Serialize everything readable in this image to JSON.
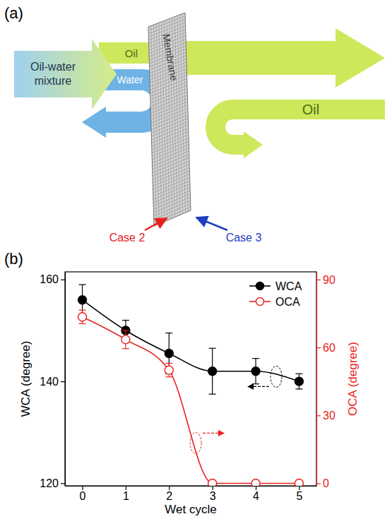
{
  "diagram": {
    "panel_label": "(a)",
    "input": "Oil-water mixture",
    "oil_in": "Oil",
    "water": "Water",
    "membrane": "Membrane",
    "oil_out": "Oil",
    "case_2": "Case 2",
    "case_3": "Case 3"
  },
  "chart_data": {
    "panel_label": "(b)",
    "type": "line",
    "xlabel": "Wet cycle",
    "ylabel": "WCA (degree)",
    "y2label": "OCA (degree)",
    "x": [
      0,
      1,
      2,
      3,
      4,
      5
    ],
    "xlim": [
      -0.4,
      5.4
    ],
    "xticks": [
      0,
      1,
      2,
      3,
      4,
      5
    ],
    "ylim": [
      119.5,
      161.5
    ],
    "yticks": [
      120,
      140,
      160
    ],
    "y2lim": [
      -1.1,
      93.4
    ],
    "y2ticks": [
      0,
      30,
      60,
      90
    ],
    "legend": "upper right",
    "series": [
      {
        "name": "WCA",
        "color": "#000000",
        "marker": "circle",
        "values": [
          156,
          150,
          145.5,
          142,
          142,
          140
        ],
        "errors": [
          3,
          2,
          4,
          4.5,
          2.5,
          1.5
        ]
      },
      {
        "name": "OCA",
        "color": "#e8211c",
        "marker": "open_circle",
        "axis": "y2",
        "values": [
          73.5,
          63.5,
          50,
          0,
          0,
          0
        ],
        "errors": [
          3,
          4,
          3,
          0,
          0,
          0
        ]
      }
    ]
  }
}
